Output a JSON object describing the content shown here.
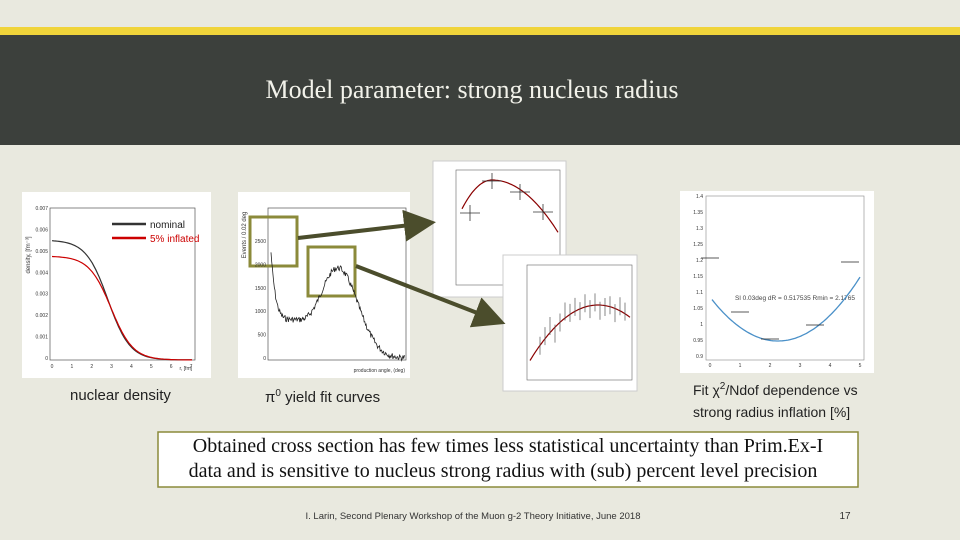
{
  "header": {
    "title": "Model parameter: strong nucleus radius"
  },
  "density_plot": {
    "legend": [
      "nominal",
      "5% inflated"
    ],
    "y_label": "density, [fm⁻³]",
    "x_label": "r, [fm]",
    "y_ticks": [
      "0.007",
      "0.006",
      "0.005",
      "0.004",
      "0.003",
      "0.002",
      "0.001",
      "0"
    ],
    "x_ticks": [
      "0",
      "1",
      "2",
      "3",
      "4",
      "5",
      "6",
      "7"
    ],
    "caption": "nuclear density"
  },
  "yield_plot": {
    "y_label": "Events / 0.02 deg",
    "x_label": "production angle, (deg)",
    "y_ticks": [
      "2500",
      "2000",
      "1500",
      "1000",
      "500",
      "0"
    ],
    "caption_symbol": "π",
    "caption_sup": "0",
    "caption_text": " yield  fit curves"
  },
  "chi2_plot": {
    "y_ticks": [
      "1.4",
      "1.35",
      "1.3",
      "1.25",
      "1.2",
      "1.15",
      "1.1",
      "1.05",
      "1",
      "0.95",
      "0.9"
    ],
    "x_ticks": [
      "0",
      "1",
      "2",
      "3",
      "4",
      "5"
    ],
    "fit_text": "Sl 0.03deg dR = 0.517535  Rmin = 2.1765",
    "caption_line1_a": "Fit χ",
    "caption_line1_sup": "2",
    "caption_line1_b": "/Ndof   dependence vs",
    "caption_line2": "strong radius inflation [%]"
  },
  "conclusion": {
    "line1": "Obtained cross section has few times less statistical uncertainty than Prim.Ex-I",
    "line2": "data and is sensitive to nucleus strong radius with (sub) percent level precision"
  },
  "footer": {
    "citation": "I. Larin, Second Plenary Workshop of the Muon g-2 Theory Initiative, June 2018",
    "page_number": "17"
  }
}
